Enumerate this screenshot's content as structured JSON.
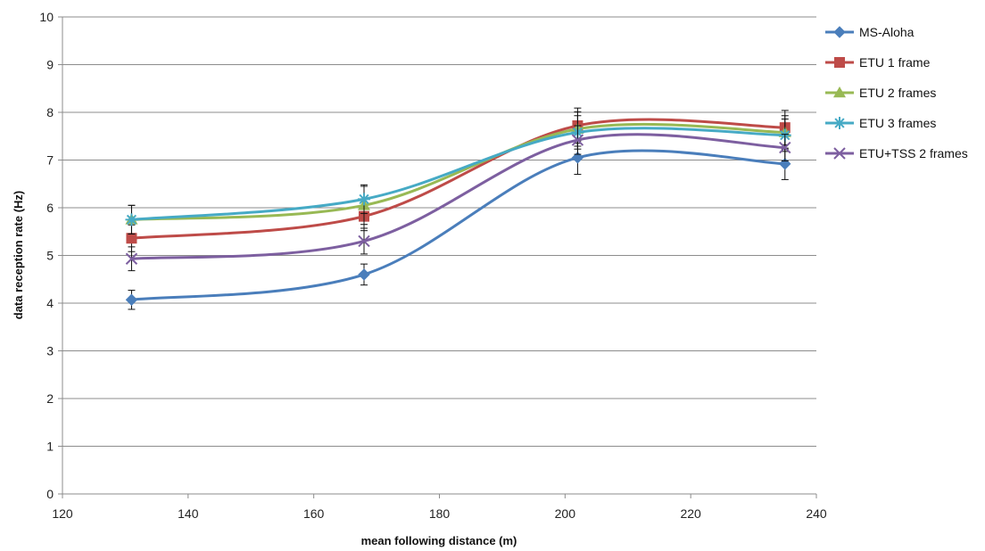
{
  "chart_data": {
    "type": "line",
    "title": "",
    "xlabel": "mean following distance (m)",
    "ylabel": "data reception rate (Hz)",
    "xlim": [
      120,
      240
    ],
    "ylim": [
      0,
      10
    ],
    "x_ticks": [
      120,
      140,
      160,
      180,
      200,
      220,
      240
    ],
    "y_ticks": [
      0,
      1,
      2,
      3,
      4,
      5,
      6,
      7,
      8,
      9,
      10
    ],
    "x_tick_labels": [
      "120",
      "140",
      "160",
      "180",
      "200",
      "220",
      "240"
    ],
    "y_tick_labels": [
      "0",
      "1",
      "2",
      "3",
      "4",
      "5",
      "6",
      "7",
      "8",
      "9",
      "10"
    ],
    "grid": "horizontal",
    "legend_position": "right",
    "smooth": true,
    "error_bars": true,
    "x": [
      131,
      168,
      202,
      235
    ],
    "series": [
      {
        "name": "MS-Aloha",
        "marker": "diamond",
        "color": "#4A7EBB",
        "values": [
          4.07,
          4.6,
          7.05,
          6.92
        ],
        "errors": [
          0.2,
          0.22,
          0.35,
          0.33
        ]
      },
      {
        "name": "ETU 1 frame",
        "marker": "square",
        "color": "#BE4B48",
        "values": [
          5.36,
          5.82,
          7.72,
          7.68
        ],
        "errors": [
          0.28,
          0.3,
          0.37,
          0.36
        ]
      },
      {
        "name": "ETU 2 frames",
        "marker": "triangle",
        "color": "#98B954",
        "values": [
          5.75,
          6.05,
          7.65,
          7.58
        ],
        "errors": [
          0.3,
          0.4,
          0.36,
          0.35
        ]
      },
      {
        "name": "ETU 3 frames",
        "marker": "star",
        "color": "#46AAC5",
        "values": [
          5.75,
          6.18,
          7.58,
          7.52
        ],
        "errors": [
          0.3,
          0.3,
          0.35,
          0.34
        ]
      },
      {
        "name": "ETU+TSS 2 frames",
        "marker": "x",
        "color": "#7D5FA0",
        "values": [
          4.93,
          5.3,
          7.42,
          7.26
        ],
        "errors": [
          0.25,
          0.27,
          0.3,
          0.28
        ]
      }
    ]
  }
}
